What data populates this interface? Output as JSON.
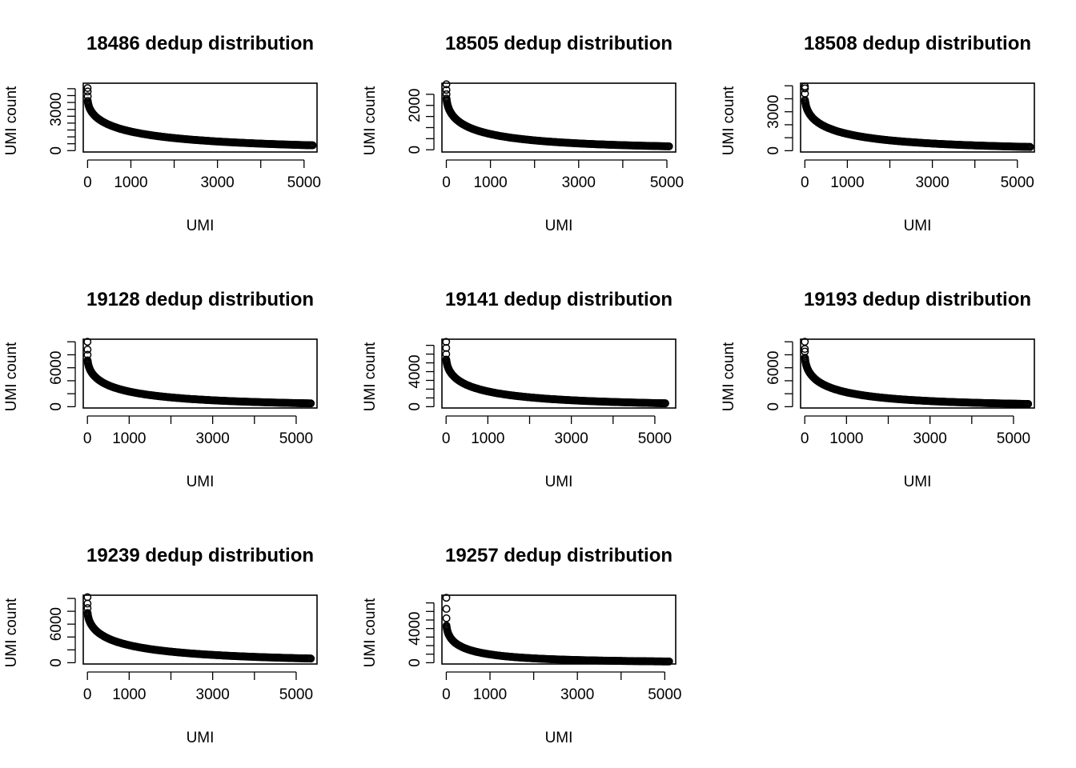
{
  "chart_data": [
    {
      "type": "scatter",
      "title": "18486 dedup distribution",
      "xlabel": "UMI",
      "ylabel": "UMI count",
      "n_points": 5200,
      "xlim": [
        -100,
        5300
      ],
      "ylim": [
        -100,
        4900
      ],
      "x_ticks": [
        0,
        1000,
        2000,
        3000,
        4000,
        5000
      ],
      "x_tick_labels": [
        "0",
        "1000",
        "",
        "3000",
        "",
        "5000"
      ],
      "y_ticks": [
        0,
        500,
        1000,
        1500,
        2000,
        2500,
        3000,
        3500,
        4000,
        4500
      ],
      "y_tick_labels": [
        "0",
        "",
        "",
        "",
        "",
        "",
        "3000",
        "",
        "",
        ""
      ],
      "outliers": [
        {
          "x": 1,
          "y": 4550
        },
        {
          "x": 2,
          "y": 4300
        },
        {
          "x": 3,
          "y": 3950
        }
      ],
      "y_start": 3850,
      "y_mid": {
        "x": 300,
        "y": 2200
      },
      "y_end": 20
    },
    {
      "type": "scatter",
      "title": "18505 dedup distribution",
      "xlabel": "UMI",
      "ylabel": "UMI count",
      "n_points": 5050,
      "xlim": [
        -100,
        5200
      ],
      "ylim": [
        -100,
        3000
      ],
      "x_ticks": [
        0,
        1000,
        2000,
        3000,
        4000,
        5000
      ],
      "x_tick_labels": [
        "0",
        "1000",
        "",
        "3000",
        "",
        "5000"
      ],
      "y_ticks": [
        0,
        500,
        1000,
        1500,
        2000,
        2500
      ],
      "y_tick_labels": [
        "0",
        "",
        "",
        "",
        "2000",
        ""
      ],
      "outliers": [
        {
          "x": 1,
          "y": 2950
        },
        {
          "x": 2,
          "y": 2700
        },
        {
          "x": 3,
          "y": 2500
        }
      ],
      "y_start": 2500,
      "y_mid": {
        "x": 300,
        "y": 1250
      },
      "y_end": 15
    },
    {
      "type": "scatter",
      "title": "18508 dedup distribution",
      "xlabel": "UMI",
      "ylabel": "UMI count",
      "n_points": 5300,
      "xlim": [
        -100,
        5400
      ],
      "ylim": [
        -100,
        5200
      ],
      "x_ticks": [
        0,
        1000,
        2000,
        3000,
        4000,
        5000
      ],
      "x_tick_labels": [
        "0",
        "1000",
        "",
        "3000",
        "",
        "5000"
      ],
      "y_ticks": [
        0,
        1000,
        2000,
        3000,
        4000,
        5000
      ],
      "y_tick_labels": [
        "0",
        "",
        "",
        "3000",
        "",
        ""
      ],
      "outliers": [
        {
          "x": 1,
          "y": 4950
        },
        {
          "x": 2,
          "y": 4800
        },
        {
          "x": 3,
          "y": 4400
        }
      ],
      "y_start": 4200,
      "y_mid": {
        "x": 300,
        "y": 2200
      },
      "y_end": 20
    },
    {
      "type": "scatter",
      "title": "19128 dedup distribution",
      "xlabel": "UMI",
      "ylabel": "UMI count",
      "n_points": 5350,
      "xlim": [
        -100,
        5500
      ],
      "ylim": [
        -200,
        10400
      ],
      "x_ticks": [
        0,
        1000,
        2000,
        3000,
        4000,
        5000
      ],
      "x_tick_labels": [
        "0",
        "1000",
        "",
        "3000",
        "",
        "5000"
      ],
      "y_ticks": [
        0,
        2000,
        4000,
        6000,
        8000,
        10000
      ],
      "y_tick_labels": [
        "0",
        "",
        "",
        "6000",
        "",
        ""
      ],
      "outliers": [
        {
          "x": 1,
          "y": 10000
        },
        {
          "x": 2,
          "y": 8800
        },
        {
          "x": 3,
          "y": 8000
        }
      ],
      "y_start": 7700,
      "y_mid": {
        "x": 300,
        "y": 4000
      },
      "y_end": 40
    },
    {
      "type": "scatter",
      "title": "19141 dedup distribution",
      "xlabel": "UMI",
      "ylabel": "UMI count",
      "n_points": 5250,
      "xlim": [
        -100,
        5500
      ],
      "ylim": [
        -150,
        7700
      ],
      "x_ticks": [
        0,
        1000,
        2000,
        3000,
        4000,
        5000
      ],
      "x_tick_labels": [
        "0",
        "1000",
        "",
        "3000",
        "",
        "5000"
      ],
      "y_ticks": [
        0,
        1000,
        2000,
        3000,
        4000,
        5000,
        6000,
        7000
      ],
      "y_tick_labels": [
        "0",
        "",
        "",
        "",
        "4000",
        "",
        "",
        ""
      ],
      "outliers": [
        {
          "x": 1,
          "y": 7400
        },
        {
          "x": 2,
          "y": 6700
        },
        {
          "x": 3,
          "y": 6000
        }
      ],
      "y_start": 5800,
      "y_mid": {
        "x": 300,
        "y": 3000
      },
      "y_end": 30
    },
    {
      "type": "scatter",
      "title": "19193 dedup distribution",
      "xlabel": "UMI",
      "ylabel": "UMI count",
      "n_points": 5350,
      "xlim": [
        -100,
        5500
      ],
      "ylim": [
        -200,
        10400
      ],
      "x_ticks": [
        0,
        1000,
        2000,
        3000,
        4000,
        5000
      ],
      "x_tick_labels": [
        "0",
        "1000",
        "",
        "3000",
        "",
        "5000"
      ],
      "y_ticks": [
        0,
        2000,
        4000,
        6000,
        8000,
        10000
      ],
      "y_tick_labels": [
        "0",
        "",
        "",
        "6000",
        "",
        ""
      ],
      "outliers": [
        {
          "x": 1,
          "y": 10000
        },
        {
          "x": 2,
          "y": 8900
        },
        {
          "x": 3,
          "y": 8500
        }
      ],
      "y_start": 8200,
      "y_mid": {
        "x": 300,
        "y": 4000
      },
      "y_end": 40
    },
    {
      "type": "scatter",
      "title": "19239 dedup distribution",
      "xlabel": "UMI",
      "ylabel": "UMI count",
      "n_points": 5350,
      "xlim": [
        -100,
        5500
      ],
      "ylim": [
        -200,
        10500
      ],
      "x_ticks": [
        0,
        1000,
        2000,
        3000,
        4000,
        5000
      ],
      "x_tick_labels": [
        "0",
        "1000",
        "",
        "3000",
        "",
        "5000"
      ],
      "y_ticks": [
        0,
        2000,
        4000,
        6000,
        8000,
        10000
      ],
      "y_tick_labels": [
        "0",
        "",
        "",
        "6000",
        "",
        ""
      ],
      "outliers": [
        {
          "x": 1,
          "y": 10200
        },
        {
          "x": 2,
          "y": 9200
        },
        {
          "x": 3,
          "y": 8500
        }
      ],
      "y_start": 8300,
      "y_mid": {
        "x": 300,
        "y": 4500
      },
      "y_end": 40
    },
    {
      "type": "scatter",
      "title": "19257 dedup distribution",
      "xlabel": "UMI",
      "ylabel": "UMI count",
      "n_points": 5100,
      "xlim": [
        -100,
        5250
      ],
      "ylim": [
        -150,
        7900
      ],
      "x_ticks": [
        0,
        1000,
        2000,
        3000,
        4000,
        5000
      ],
      "x_tick_labels": [
        "0",
        "1000",
        "",
        "3000",
        "",
        "5000"
      ],
      "y_ticks": [
        0,
        1000,
        2000,
        3000,
        4000,
        5000,
        6000,
        7000
      ],
      "y_tick_labels": [
        "0",
        "",
        "",
        "",
        "4000",
        "",
        "",
        ""
      ],
      "outliers": [
        {
          "x": 1,
          "y": 7600
        },
        {
          "x": 2,
          "y": 6300
        },
        {
          "x": 3,
          "y": 5200
        }
      ],
      "y_start": 4800,
      "y_mid": {
        "x": 300,
        "y": 2000
      },
      "y_end": 20
    }
  ]
}
